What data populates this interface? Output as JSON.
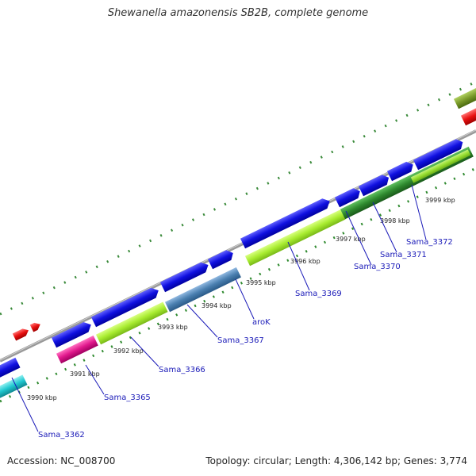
{
  "title": "Shewanella amazonensis SB2B, complete genome",
  "footer": {
    "accession": "Accession: NC_008700",
    "topology": "Topology: circular; Length: 4,306,142 bp; Genes: 3,774"
  },
  "tick_labels": [
    "3990 kbp",
    "3991 kbp",
    "3992 kbp",
    "3993 kbp",
    "3994 kbp",
    "3995 kbp",
    "3996 kbp",
    "3997 kbp",
    "3998 kbp",
    "3999 kbp"
  ],
  "gene_labels": [
    "Sama_3362",
    "Sama_3365",
    "Sama_3366",
    "Sama_3367",
    "aroK",
    "Sama_3369",
    "Sama_3370",
    "Sama_3371",
    "Sama_3372"
  ],
  "colors": {
    "cds_forward": "#1010e0",
    "backbone": "#888888",
    "pink": "#e0188c",
    "lime": "#a8ec30",
    "steel": "#4a7fb0",
    "dark_green": "#2f8a2f",
    "cyan": "#20c8d0",
    "red": "#e81010",
    "olive": "#7a9a2a",
    "label_blue": "#1a1ab8"
  }
}
